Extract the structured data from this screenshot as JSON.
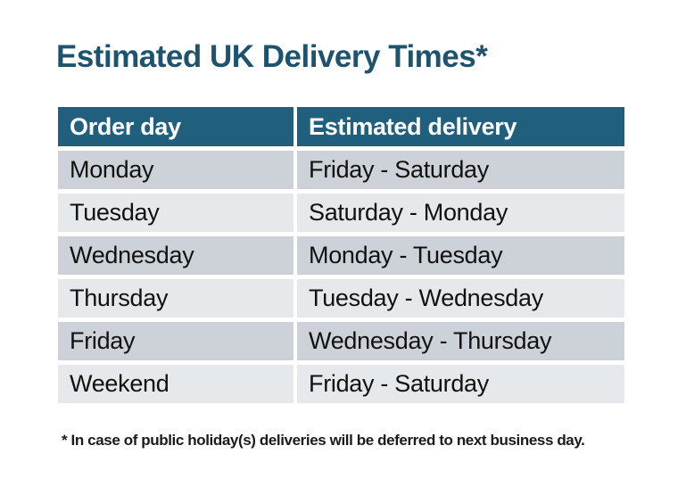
{
  "page": {
    "title": "Estimated UK Delivery Times*",
    "footnote": "* In case of public holiday(s) deliveries will be deferred to next business day."
  },
  "table": {
    "columns": [
      "Order day",
      "Estimated delivery"
    ],
    "rows": [
      {
        "order_day": "Monday",
        "estimated_delivery": "Friday - Saturday"
      },
      {
        "order_day": "Tuesday",
        "estimated_delivery": "Saturday - Monday"
      },
      {
        "order_day": "Wednesday",
        "estimated_delivery": "Monday - Tuesday"
      },
      {
        "order_day": "Thursday",
        "estimated_delivery": "Tuesday - Wednesday"
      },
      {
        "order_day": "Friday",
        "estimated_delivery": "Wednesday - Thursday"
      },
      {
        "order_day": "Weekend",
        "estimated_delivery": "Friday - Saturday"
      }
    ],
    "colors": {
      "title_text": "#1E536E",
      "header_bg": "#215F7E",
      "header_text": "#FFFFFF",
      "row_odd_bg": "#CDD1D8",
      "row_even_bg": "#E6E9EC",
      "cell_text": "#111111"
    }
  }
}
